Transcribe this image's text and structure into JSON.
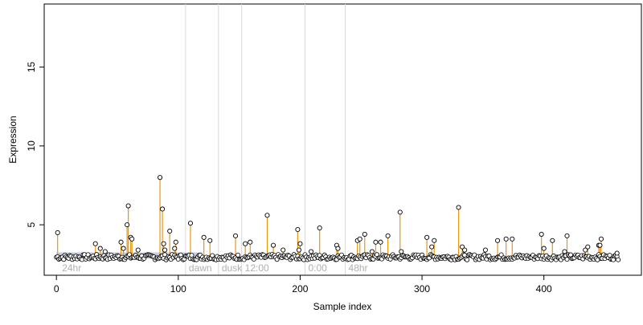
{
  "chart_data": {
    "type": "scatter",
    "title": "",
    "xlabel": "Sample index",
    "ylabel": "Expression",
    "xlim": [
      -10,
      480
    ],
    "ylim": [
      1.8,
      19.0
    ],
    "x_ticks": [
      0,
      100,
      200,
      300,
      400
    ],
    "y_ticks": [
      5,
      10,
      15
    ],
    "baseline": 3.0,
    "grid": false,
    "legend": "none",
    "colors": {
      "stem": "#e8960f",
      "point_stroke": "#000000",
      "point_fill": "#ffffff",
      "baseline_band": "#a9b8d8",
      "region_line": "#d9d9d9",
      "region_text": "#b0b0b0"
    },
    "regions": [
      {
        "label": "24hr",
        "x": 2,
        "line": false
      },
      {
        "label": "dawn",
        "x": 106,
        "line": true
      },
      {
        "label": "dusk",
        "x": 133,
        "line": true
      },
      {
        "label": "12:00",
        "x": 152,
        "line": true
      },
      {
        "label": "0:00",
        "x": 204,
        "line": true
      },
      {
        "label": "48hr",
        "x": 237,
        "line": true
      }
    ],
    "peaks": [
      {
        "x": 1,
        "y": 4.5
      },
      {
        "x": 32,
        "y": 3.8
      },
      {
        "x": 36,
        "y": 3.5
      },
      {
        "x": 40,
        "y": 3.3
      },
      {
        "x": 53,
        "y": 3.9
      },
      {
        "x": 55,
        "y": 3.5
      },
      {
        "x": 58,
        "y": 5.0
      },
      {
        "x": 59,
        "y": 6.2
      },
      {
        "x": 61,
        "y": 4.2
      },
      {
        "x": 62,
        "y": 4.1
      },
      {
        "x": 67,
        "y": 3.4
      },
      {
        "x": 85,
        "y": 8.0
      },
      {
        "x": 87,
        "y": 6.0
      },
      {
        "x": 88,
        "y": 3.8
      },
      {
        "x": 89,
        "y": 3.4
      },
      {
        "x": 93,
        "y": 4.6
      },
      {
        "x": 98,
        "y": 3.9
      },
      {
        "x": 97,
        "y": 3.5
      },
      {
        "x": 110,
        "y": 5.1
      },
      {
        "x": 121,
        "y": 4.2
      },
      {
        "x": 126,
        "y": 4.0
      },
      {
        "x": 147,
        "y": 4.3
      },
      {
        "x": 155,
        "y": 3.8
      },
      {
        "x": 159,
        "y": 3.9
      },
      {
        "x": 173,
        "y": 5.6
      },
      {
        "x": 178,
        "y": 3.7
      },
      {
        "x": 186,
        "y": 3.4
      },
      {
        "x": 198,
        "y": 4.7
      },
      {
        "x": 200,
        "y": 3.8
      },
      {
        "x": 199,
        "y": 3.4
      },
      {
        "x": 209,
        "y": 3.3
      },
      {
        "x": 216,
        "y": 4.8
      },
      {
        "x": 230,
        "y": 3.7
      },
      {
        "x": 231,
        "y": 3.5
      },
      {
        "x": 247,
        "y": 4.0
      },
      {
        "x": 249,
        "y": 4.1
      },
      {
        "x": 253,
        "y": 4.4
      },
      {
        "x": 259,
        "y": 3.3
      },
      {
        "x": 262,
        "y": 3.9
      },
      {
        "x": 266,
        "y": 3.9
      },
      {
        "x": 272,
        "y": 4.3
      },
      {
        "x": 282,
        "y": 5.8
      },
      {
        "x": 283,
        "y": 3.3
      },
      {
        "x": 304,
        "y": 4.2
      },
      {
        "x": 308,
        "y": 3.6
      },
      {
        "x": 310,
        "y": 4.0
      },
      {
        "x": 330,
        "y": 6.1
      },
      {
        "x": 333,
        "y": 3.6
      },
      {
        "x": 335,
        "y": 3.4
      },
      {
        "x": 352,
        "y": 3.4
      },
      {
        "x": 362,
        "y": 4.0
      },
      {
        "x": 369,
        "y": 4.1
      },
      {
        "x": 374,
        "y": 4.1
      },
      {
        "x": 398,
        "y": 4.4
      },
      {
        "x": 400,
        "y": 3.5
      },
      {
        "x": 407,
        "y": 4.0
      },
      {
        "x": 419,
        "y": 4.3
      },
      {
        "x": 417,
        "y": 3.3
      },
      {
        "x": 434,
        "y": 3.4
      },
      {
        "x": 436,
        "y": 3.6
      },
      {
        "x": 445,
        "y": 3.7
      },
      {
        "x": 446,
        "y": 3.7
      },
      {
        "x": 447,
        "y": 4.1
      },
      {
        "x": 460,
        "y": 3.2
      }
    ]
  }
}
